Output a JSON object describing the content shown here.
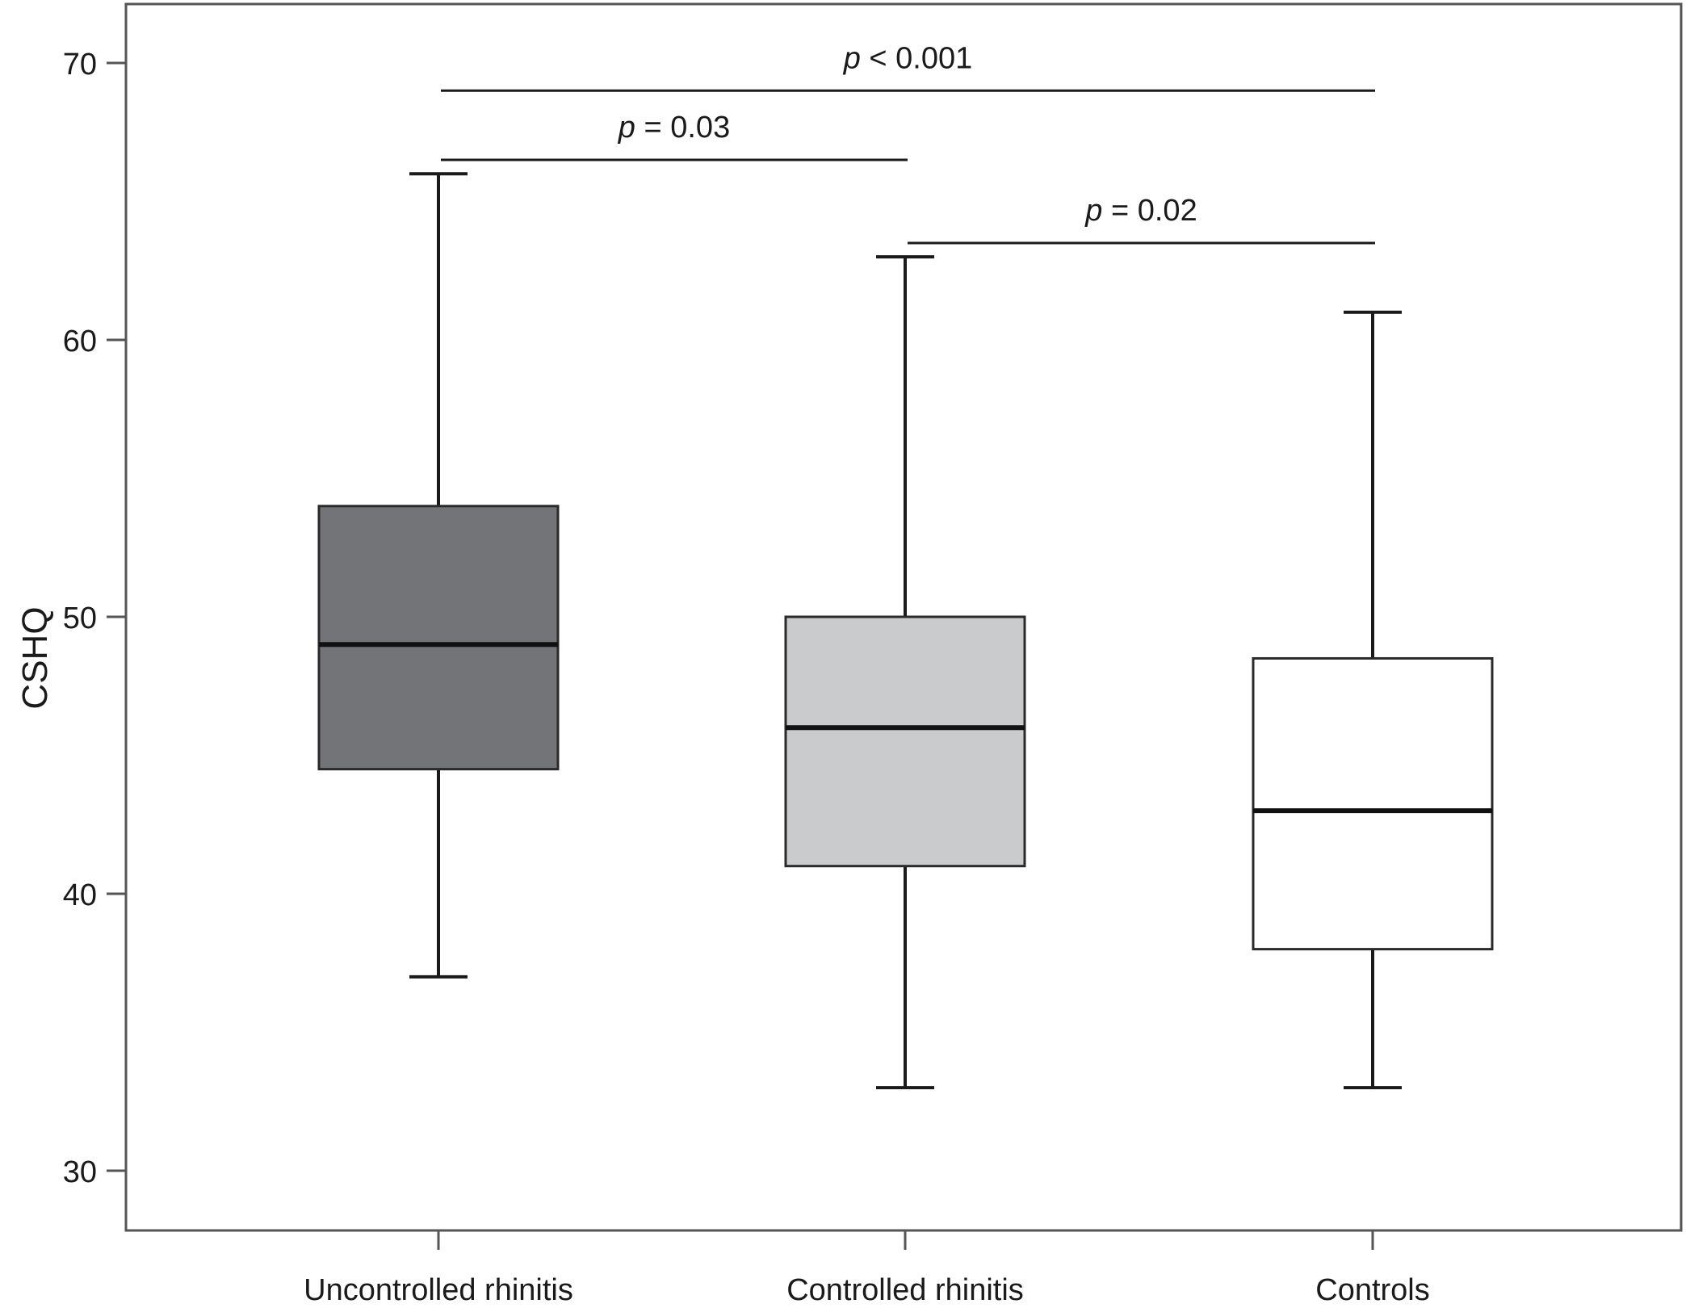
{
  "chart_data": {
    "type": "box",
    "title": "",
    "xlabel": "",
    "ylabel": "CSHQ",
    "ylim": [
      28,
      72
    ],
    "yticks": [
      30,
      40,
      50,
      60,
      70
    ],
    "grid": false,
    "categories": [
      "Uncontrolled rhinitis",
      "Controlled rhinitis",
      "Controls"
    ],
    "boxes": [
      {
        "category": "Uncontrolled rhinitis",
        "min": 37,
        "q1": 44.5,
        "median": 49,
        "q3": 54,
        "max": 66,
        "fill": "#737477"
      },
      {
        "category": "Controlled rhinitis",
        "min": 33,
        "q1": 41,
        "median": 46,
        "q3": 50,
        "max": 63,
        "fill": "#cacbcd"
      },
      {
        "category": "Controls",
        "min": 33,
        "q1": 38,
        "median": 43,
        "q3": 48.5,
        "max": 61,
        "fill": "#ffffff"
      }
    ],
    "comparisons": [
      {
        "from": 0,
        "to": 2,
        "y": 69,
        "p_symbol": "p",
        "p_rest": " < 0.001"
      },
      {
        "from": 0,
        "to": 1,
        "y": 66.5,
        "p_symbol": "p",
        "p_rest": " = 0.03"
      },
      {
        "from": 1,
        "to": 2,
        "y": 63.5,
        "p_symbol": "p",
        "p_rest": " = 0.02"
      }
    ]
  }
}
